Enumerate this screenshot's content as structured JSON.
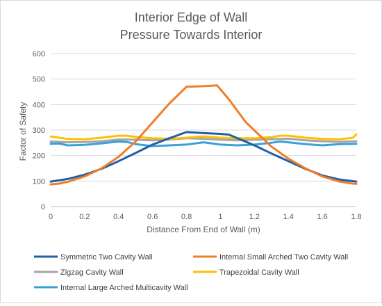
{
  "chart_data": {
    "type": "line",
    "title": [
      "Interior Edge of Wall",
      "Pressure Towards Interior"
    ],
    "xlabel": "Distance From End of Wall (m)",
    "ylabel": "Factor of Safety",
    "xlim": [
      0,
      1.8
    ],
    "ylim": [
      0,
      600
    ],
    "x_ticks": [
      "0",
      "0.2",
      "0.4",
      "0.6",
      "0.8",
      "1",
      "1.2",
      "1.4",
      "1.6",
      "1.8"
    ],
    "y_ticks": [
      "0",
      "100",
      "200",
      "300",
      "400",
      "500",
      "600"
    ],
    "grid": "horizontal",
    "legend_position": "bottom",
    "series": [
      {
        "name": "Symmetric Two Cavity Wall",
        "color": "#1F5FA8",
        "x": [
          0,
          0.1,
          0.2,
          0.3,
          0.4,
          0.5,
          0.6,
          0.7,
          0.8,
          0.9,
          1.0,
          1.05,
          1.1,
          1.2,
          1.3,
          1.4,
          1.5,
          1.6,
          1.7,
          1.8
        ],
        "y": [
          98,
          108,
          125,
          148,
          178,
          210,
          243,
          268,
          292,
          288,
          285,
          282,
          268,
          240,
          208,
          178,
          148,
          122,
          106,
          98
        ]
      },
      {
        "name": "Internal Small Arched Two Cavity Wall",
        "color": "#F07D28",
        "x": [
          0,
          0.05,
          0.1,
          0.2,
          0.3,
          0.4,
          0.5,
          0.6,
          0.7,
          0.8,
          0.9,
          0.98,
          1.05,
          1.15,
          1.3,
          1.4,
          1.5,
          1.6,
          1.7,
          1.78,
          1.8
        ],
        "y": [
          87,
          90,
          97,
          118,
          150,
          195,
          255,
          330,
          405,
          470,
          472,
          475,
          420,
          330,
          235,
          188,
          150,
          118,
          98,
          90,
          89
        ]
      },
      {
        "name": "Zigzag Cavity Wall",
        "color": "#A5A5A5",
        "x": [
          0,
          0.1,
          0.2,
          0.3,
          0.4,
          0.5,
          0.6,
          0.7,
          0.8,
          0.9,
          1.0,
          1.1,
          1.2,
          1.3,
          1.4,
          1.5,
          1.6,
          1.7,
          1.8
        ],
        "y": [
          255,
          252,
          253,
          256,
          263,
          262,
          260,
          263,
          268,
          266,
          262,
          260,
          262,
          264,
          266,
          260,
          256,
          254,
          256
        ]
      },
      {
        "name": "Trapezoidal Cavity Wall",
        "color": "#FFC000",
        "x": [
          0,
          0.05,
          0.1,
          0.2,
          0.3,
          0.4,
          0.45,
          0.5,
          0.6,
          0.7,
          0.8,
          0.9,
          1.0,
          1.1,
          1.2,
          1.3,
          1.35,
          1.4,
          1.5,
          1.6,
          1.7,
          1.78,
          1.8
        ],
        "y": [
          275,
          270,
          265,
          264,
          270,
          278,
          278,
          273,
          268,
          266,
          270,
          275,
          270,
          268,
          268,
          272,
          278,
          278,
          270,
          265,
          264,
          270,
          283
        ]
      },
      {
        "name": "Internal Large Arched Multicavity Wall",
        "color": "#3AA0DA",
        "x": [
          0,
          0.05,
          0.1,
          0.2,
          0.3,
          0.4,
          0.45,
          0.5,
          0.6,
          0.7,
          0.8,
          0.9,
          1.0,
          1.1,
          1.2,
          1.3,
          1.35,
          1.4,
          1.5,
          1.6,
          1.7,
          1.8
        ],
        "y": [
          246,
          247,
          240,
          242,
          248,
          255,
          253,
          245,
          237,
          240,
          243,
          252,
          243,
          240,
          243,
          250,
          255,
          252,
          245,
          240,
          245,
          246
        ]
      }
    ]
  }
}
